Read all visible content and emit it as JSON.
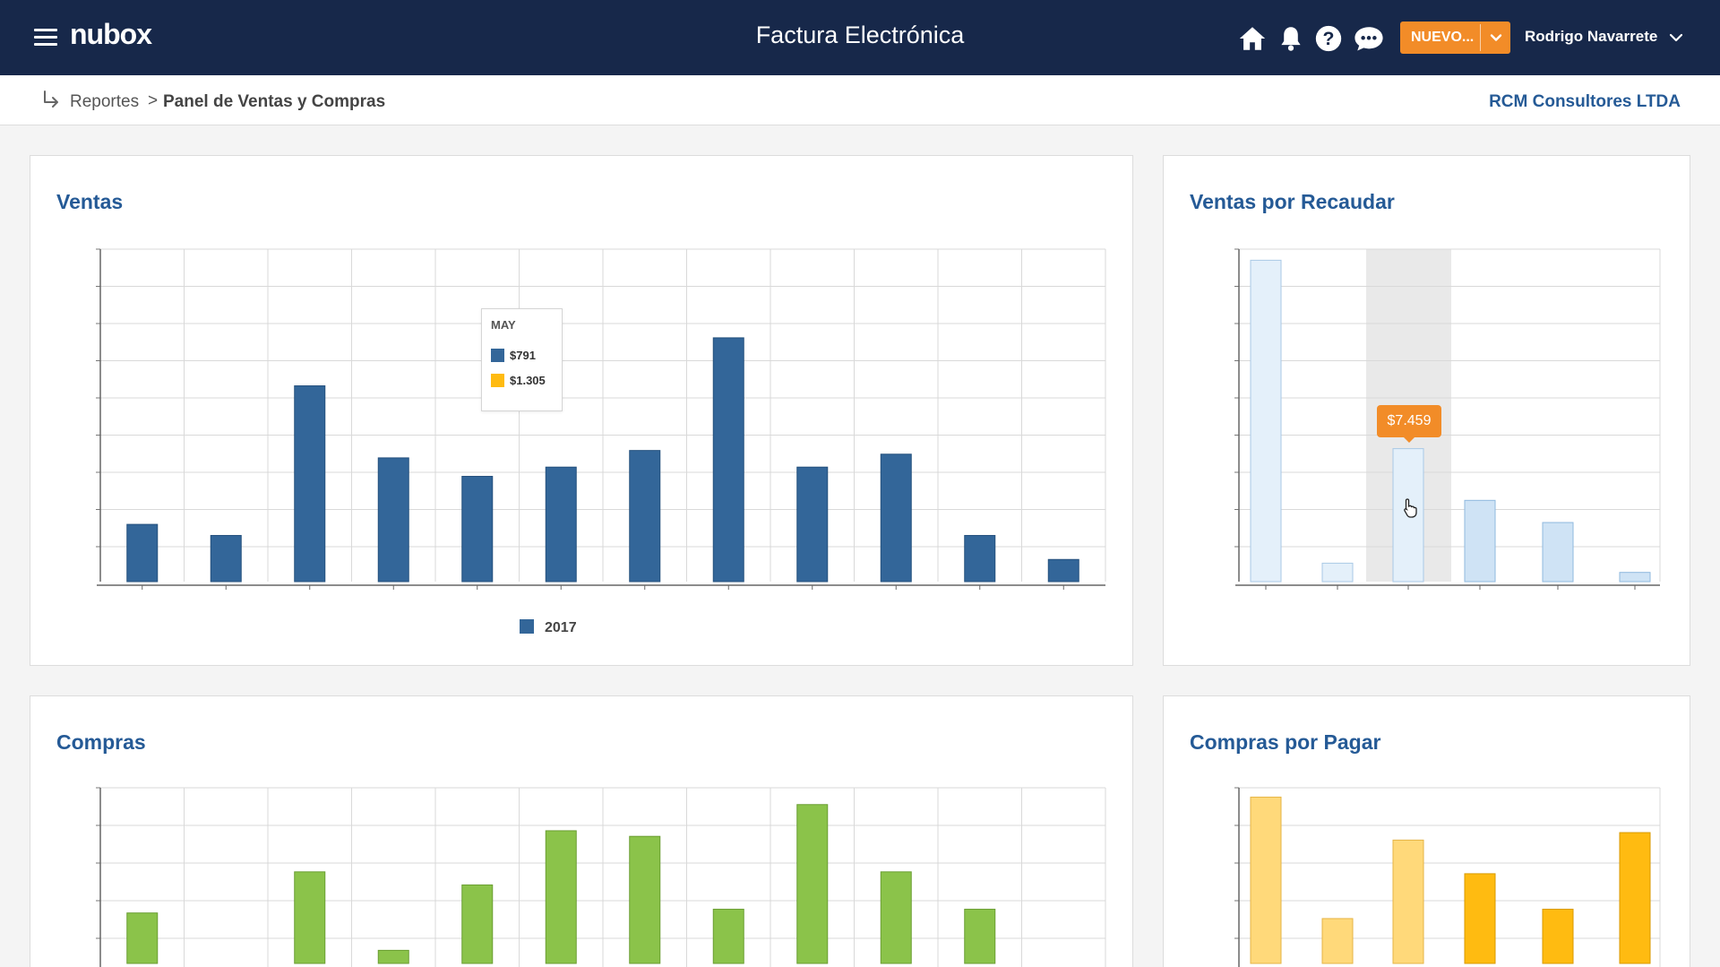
{
  "header": {
    "logo": "nubox",
    "app_title": "Factura Electrónica",
    "new_button_label": "NUEVO...",
    "user_name": "Rodrigo Navarrete",
    "icons": [
      "menu-icon",
      "home-icon",
      "bell-icon",
      "help-icon",
      "chat-icon",
      "chevron-down-icon"
    ]
  },
  "breadcrumb": {
    "items": [
      "Reportes",
      "Panel de Ventas y Compras"
    ],
    "separator": ">",
    "company": "RCM Consultores LTDA"
  },
  "colors": {
    "topbar": "#17284a",
    "accent": "#f28c28",
    "title_blue": "#255a96",
    "ventas_bar": "#336699",
    "compras_bar": "#8bc34a",
    "recaudar_bar": "#d6e8f7",
    "pagar_bar_light": "#ffd97a",
    "pagar_bar_dark": "#ffbb11",
    "tooltip_yellow": "#ffbb11"
  },
  "cards": {
    "ventas": {
      "title": "Ventas",
      "tooltip": {
        "month": "MAY",
        "rows": [
          {
            "value": "$791",
            "color": "#336699"
          },
          {
            "value": "$1.305",
            "color": "#ffbb11"
          }
        ]
      },
      "legend": "2017"
    },
    "recaudar": {
      "title": "Ventas por Recaudar",
      "highlight_label": "$7.459"
    },
    "compras": {
      "title": "Compras"
    },
    "pagar": {
      "title": "Compras por Pagar"
    }
  },
  "chart_data": [
    {
      "type": "bar",
      "title": "Ventas",
      "categories": [
        "",
        "",
        "",
        "",
        "",
        "",
        "",
        "",
        "",
        "",
        "",
        ""
      ],
      "series": [
        {
          "name": "2017",
          "values": [
            1.55,
            1.25,
            5.3,
            3.35,
            2.85,
            3.1,
            3.55,
            6.6,
            3.1,
            3.45,
            1.25,
            0.6
          ]
        }
      ],
      "ylim": [
        0,
        9
      ],
      "grid": true,
      "legend": "bottom-center"
    },
    {
      "type": "bar",
      "title": "Ventas por Recaudar",
      "categories": [
        "",
        "",
        "",
        "",
        "",
        ""
      ],
      "values": [
        8.7,
        0.5,
        3.6,
        2.2,
        1.6,
        0.25
      ],
      "ylim": [
        0,
        9
      ],
      "grid": true,
      "legend": "none"
    },
    {
      "type": "bar",
      "title": "Compras",
      "categories": [
        "",
        "",
        "",
        "",
        "",
        "",
        "",
        "",
        "",
        "",
        "",
        ""
      ],
      "values": [
        1.35,
        0.0,
        2.45,
        0.35,
        2.1,
        3.55,
        3.4,
        1.45,
        4.25,
        2.45,
        1.45,
        0.0
      ],
      "ylim": [
        0,
        4.7
      ],
      "grid": true,
      "legend": "none"
    },
    {
      "type": "bar",
      "title": "Compras por Pagar",
      "categories": [
        "",
        "",
        "",
        "",
        "",
        ""
      ],
      "values": [
        4.45,
        1.2,
        3.3,
        2.4,
        1.45,
        3.5
      ],
      "ylim": [
        0,
        4.7
      ],
      "grid": true,
      "legend": "none"
    }
  ]
}
